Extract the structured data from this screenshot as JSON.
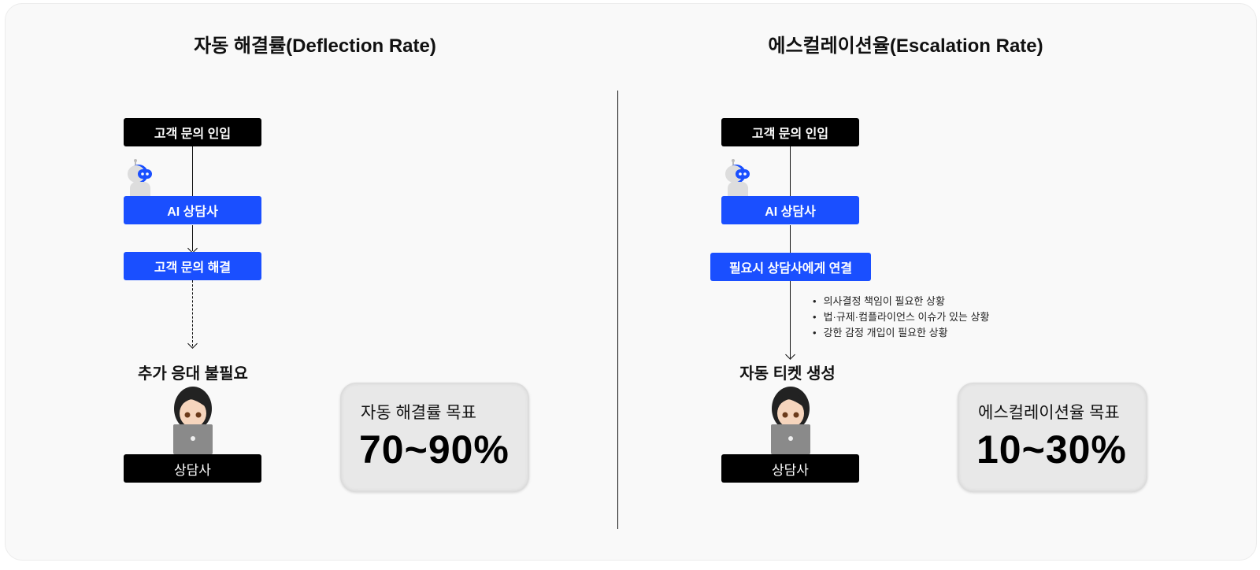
{
  "left": {
    "title": "자동 해결률(Deflection Rate)",
    "inquiry_label": "고객 문의 인입",
    "ai_agent_label": "AI 상담사",
    "resolved_label": "고객 문의 해결",
    "outcome_label": "추가 응대 불필요",
    "agent_label": "상담사",
    "goal_title": "자동 해결률 목표",
    "goal_value": "70~90%"
  },
  "right": {
    "title": "에스컬레이션율(Escalation Rate)",
    "inquiry_label": "고객 문의 인입",
    "ai_agent_label": "AI 상담사",
    "connect_label": "필요시 상담사에게 연결",
    "conditions": [
      "의사결정 책임이 필요한 상황",
      "법·규제·컴플라이언스 이슈가 있는 상황",
      "강한 감정 개입이 필요한 상황"
    ],
    "outcome_label": "자동 티켓 생성",
    "agent_label": "상담사",
    "goal_title": "에스컬레이션율 목표",
    "goal_value": "10~30%"
  },
  "colors": {
    "primary_blue": "#1a4fff",
    "dark": "#000000",
    "card_bg": "#e8e8e8"
  },
  "icons": [
    "robot-icon",
    "agent-laptop-icon"
  ]
}
